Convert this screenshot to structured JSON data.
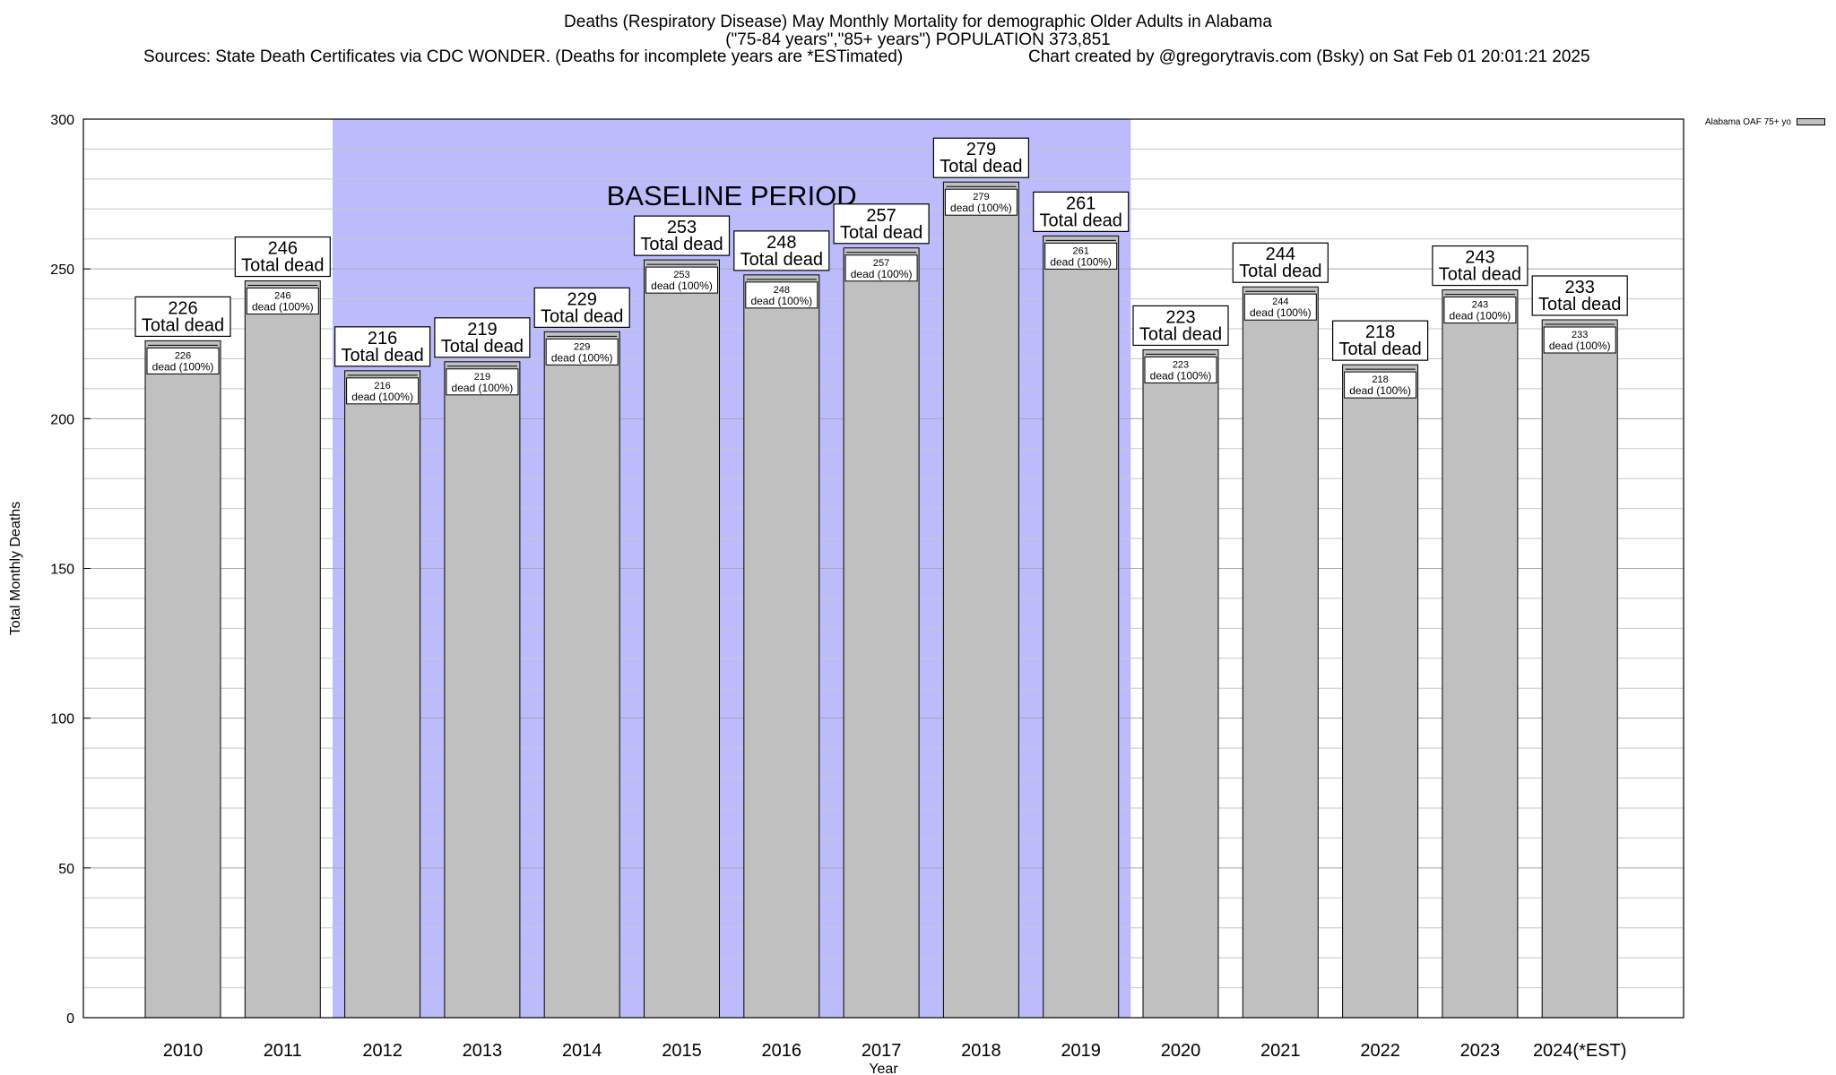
{
  "header": {
    "title_line1": "Deaths (Respiratory Disease) May Monthly Mortality for demographic Older Adults in Alabama",
    "title_line2": "(\"75-84 years\",\"85+ years\") POPULATION 373,851",
    "sources": "Sources: State Death Certificates via CDC WONDER. (Deaths for incomplete years are *ESTimated)",
    "credit": "Chart created by @gregorytravis.com (Bsky) on Sat Feb 01 20:01:21 2025"
  },
  "legend": {
    "label": "Alabama OAF 75+ yo"
  },
  "colors": {
    "bar": "#c0c0c0",
    "baseline": "#bcbcfc",
    "grid": "#c8c8c8"
  },
  "chart_data": {
    "type": "bar",
    "xlabel": "Year",
    "ylabel": "Total Monthly Deaths",
    "ylim": [
      0,
      300
    ],
    "yticks": [
      0,
      50,
      100,
      150,
      200,
      250,
      300
    ],
    "grid": true,
    "legend_position": "top-right, outside plot",
    "baseline_label": "BASELINE PERIOD",
    "baseline_range": [
      "2012",
      "2019"
    ],
    "categories": [
      "2010",
      "2011",
      "2012",
      "2013",
      "2014",
      "2015",
      "2016",
      "2017",
      "2018",
      "2019",
      "2020",
      "2021",
      "2022",
      "2023",
      "2024(*EST)"
    ],
    "series": [
      {
        "name": "Alabama OAF 75+ yo",
        "values": [
          226,
          246,
          216,
          219,
          229,
          253,
          248,
          257,
          279,
          261,
          223,
          244,
          218,
          243,
          233
        ]
      }
    ],
    "total_label_suffix": "Total dead",
    "inner_label_suffix": "dead (100%)"
  }
}
